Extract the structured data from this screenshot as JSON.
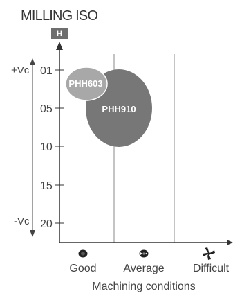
{
  "title": "MILLING ISO",
  "iso_group": "H",
  "colors": {
    "iso_h_badge": "#6e6e6e",
    "axis": "#333333",
    "divider": "#888888",
    "bubble_large": "#777777",
    "bubble_small": "#a8a8a8"
  },
  "speed_axis": {
    "top_label": "+Vc",
    "bottom_label": "-Vc"
  },
  "chart_data": {
    "type": "bubble",
    "title": "MILLING ISO",
    "y_ticks": [
      "01",
      "05",
      "10",
      "15",
      "20"
    ],
    "x_categories": [
      "Good",
      "Average",
      "Difficult"
    ],
    "xlabel": "Machining conditions",
    "series": [
      {
        "name": "PHH910",
        "x_range": [
          0.4,
          1.2
        ],
        "y_range": [
          1,
          10
        ],
        "color": "#777777"
      },
      {
        "name": "PHH603",
        "x_range": [
          0.05,
          0.55
        ],
        "y_range": [
          1,
          4
        ],
        "color": "#a8a8a8"
      }
    ]
  },
  "condition_icons": [
    "good-condition-icon",
    "average-condition-icon",
    "difficult-condition-icon"
  ]
}
